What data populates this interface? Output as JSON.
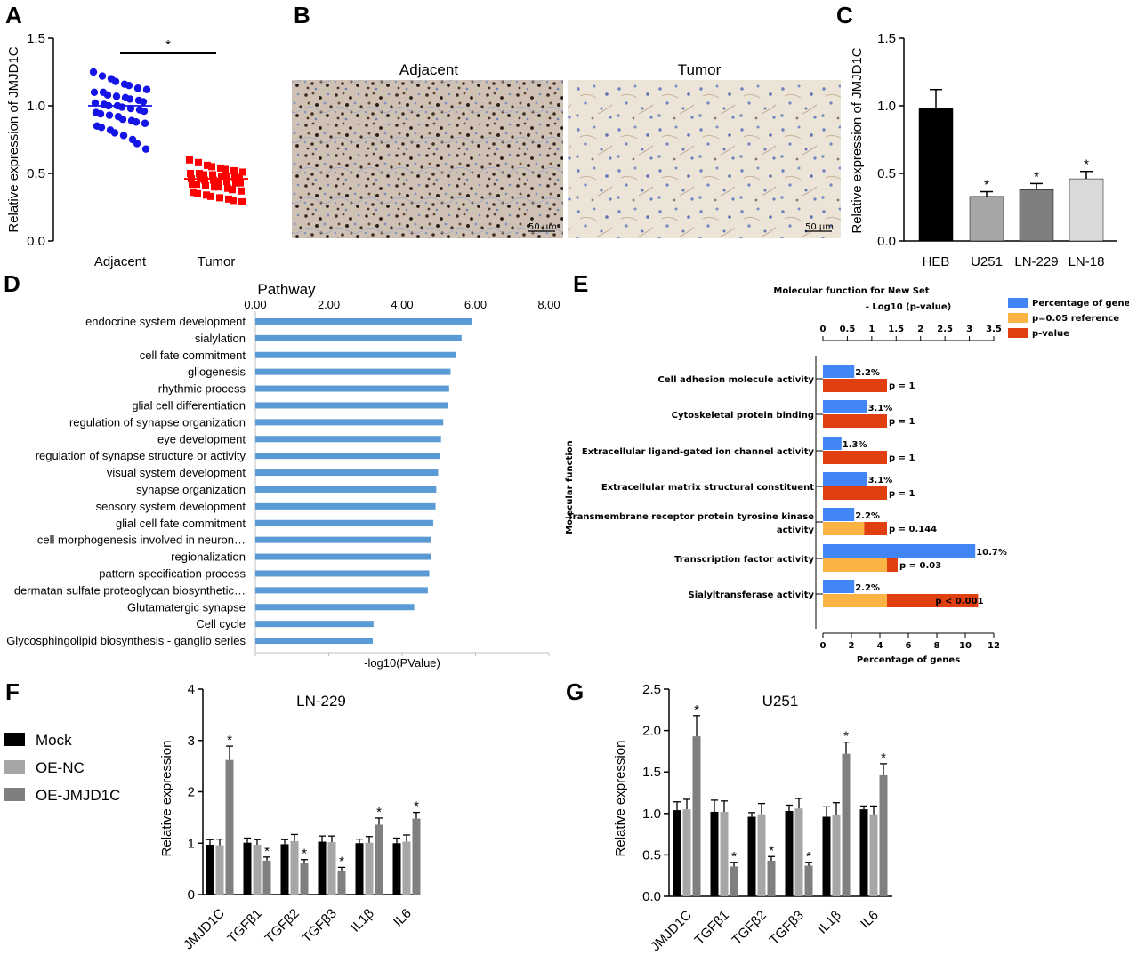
{
  "chart_data": [
    {
      "panel": "A",
      "type": "scatter",
      "ylabel": "Relative expression of JMJD1C",
      "ylim": [
        0,
        1.5
      ],
      "yticks": [
        "0.0",
        "0.5",
        "1.0",
        "1.5"
      ],
      "categories": [
        "Adjacent",
        "Tumor"
      ],
      "significance": "*",
      "series": [
        {
          "values": [
            1.25,
            1.22,
            1.2,
            1.18,
            1.16,
            1.15,
            1.13,
            1.12,
            1.1,
            1.1,
            1.08,
            1.07,
            1.06,
            1.05,
            1.04,
            1.03,
            1.02,
            1.01,
            1.0,
            1.0,
            0.99,
            0.98,
            0.97,
            0.96,
            0.95,
            0.94,
            0.93,
            0.92,
            0.9,
            0.89,
            0.88,
            0.87,
            0.85,
            0.84,
            0.82,
            0.8,
            0.78,
            0.75,
            0.72,
            0.68
          ],
          "mean": 1.0,
          "color": "#1414e6"
        },
        {
          "values": [
            0.6,
            0.58,
            0.56,
            0.55,
            0.54,
            0.53,
            0.52,
            0.51,
            0.5,
            0.5,
            0.49,
            0.49,
            0.48,
            0.48,
            0.47,
            0.47,
            0.46,
            0.46,
            0.45,
            0.45,
            0.44,
            0.44,
            0.43,
            0.43,
            0.42,
            0.42,
            0.41,
            0.4,
            0.4,
            0.39,
            0.38,
            0.37,
            0.36,
            0.35,
            0.34,
            0.33,
            0.32,
            0.31,
            0.3,
            0.29
          ],
          "mean": 0.46,
          "color": "#ff0000"
        }
      ]
    },
    {
      "panel": "C",
      "type": "bar",
      "ylabel": "Relative expression of JMJD1C",
      "ylim": [
        0,
        1.5
      ],
      "yticks": [
        "0.0",
        "0.5",
        "1.0",
        "1.5"
      ],
      "categories": [
        "HEB",
        "U251",
        "LN-229",
        "LN-18"
      ],
      "values": [
        0.98,
        0.33,
        0.38,
        0.46
      ],
      "errors": [
        0.14,
        0.035,
        0.045,
        0.055
      ],
      "colors": [
        "#000000",
        "#a6a6a6",
        "#7f7f7f",
        "#d9d9d9"
      ],
      "significance": [
        "",
        "*",
        "*",
        "*"
      ]
    },
    {
      "panel": "D",
      "type": "bar",
      "title": "Pathway",
      "xlabel": "-log10(PValue)",
      "xlim": [
        0,
        8
      ],
      "xticks": [
        "0.00",
        "2.00",
        "4.00",
        "6.00",
        "8.00"
      ],
      "color": "#5b9bd5",
      "categories": [
        "endocrine system development",
        "sialylation",
        "cell fate commitment",
        "gliogenesis",
        "rhythmic process",
        "glial cell differentiation",
        "regulation of synapse organization",
        "eye development",
        "regulation of synapse structure or activity",
        "visual system development",
        "synapse organization",
        "sensory system development",
        "glial cell fate commitment",
        "cell morphogenesis involved in neuron…",
        "regionalization",
        "pattern specification process",
        "dermatan sulfate proteoglycan biosynthetic…",
        "Glutamatergic synapse",
        "Cell cycle",
        "Glycosphingolipid biosynthesis - ganglio series"
      ],
      "values": [
        5.9,
        5.62,
        5.46,
        5.32,
        5.28,
        5.26,
        5.12,
        5.06,
        5.03,
        4.98,
        4.93,
        4.91,
        4.85,
        4.79,
        4.79,
        4.74,
        4.7,
        4.33,
        3.22,
        3.2
      ]
    },
    {
      "panel": "E",
      "type": "bar",
      "title": "Molecular function for New Set",
      "top_axis_label": "- Log10 (p-value)",
      "top_xlim": [
        0,
        3.5
      ],
      "top_xticks": [
        "0",
        "0.5",
        "1",
        "1.5",
        "2",
        "2.5",
        "3",
        "3.5"
      ],
      "xlabel": "Percentage of genes",
      "xlim": [
        0,
        12
      ],
      "xticks": [
        "0",
        "2",
        "4",
        "6",
        "8",
        "10",
        "12"
      ],
      "ylabel": "Molecular function",
      "legend": [
        "Percentage of gene",
        "p=0.05 reference",
        "p-value"
      ],
      "colors": {
        "percentage": "#4285f4",
        "reference": "#fbb346",
        "pvalue": "#e0400f"
      },
      "legend_placement": "top-right",
      "categories": [
        "Cell adhesion molecule activity",
        "Cytoskeletal protein binding",
        "Extracellular ligand-gated ion channel activity",
        "Extracellular matrix structural constituent",
        "Transmembrane receptor protein tyrosine kinase activity",
        "Transcription factor activity",
        "Sialyltransferase activity"
      ],
      "percentage": [
        2.2,
        3.1,
        1.3,
        3.1,
        2.2,
        10.7,
        2.2
      ],
      "percentage_labels": [
        "2.2%",
        "3.1%",
        "1.3%",
        "3.1%",
        "2.2%",
        "10.7%",
        "2.2%"
      ],
      "reference_pct": [
        0,
        0,
        0,
        0,
        2.9,
        4.5,
        4.5
      ],
      "pvalue_pct": [
        4.5,
        4.5,
        4.5,
        4.5,
        4.5,
        5.25,
        10.9
      ],
      "pvalue_labels": [
        "p = 1",
        "p = 1",
        "p = 1",
        "p = 1",
        "p = 0.144",
        "p = 0.03",
        "p < 0.001"
      ]
    },
    {
      "panel": "F",
      "type": "bar",
      "title": "LN-229",
      "ylabel": "Relative expression",
      "ylim": [
        0,
        4
      ],
      "yticks": [
        "0",
        "1",
        "2",
        "3",
        "4"
      ],
      "categories": [
        "JMJD1C",
        "TGFβ1",
        "TGFβ2",
        "TGFβ3",
        "IL1β",
        "IL6"
      ],
      "series": [
        {
          "name": "Mock",
          "values": [
            0.97,
            1.01,
            0.98,
            1.03,
            1.0,
            1.0
          ],
          "errors": [
            0.1,
            0.09,
            0.09,
            0.11,
            0.08,
            0.1
          ]
        },
        {
          "name": "OE-NC",
          "values": [
            0.96,
            0.97,
            1.04,
            1.02,
            1.01,
            1.03
          ],
          "errors": [
            0.12,
            0.1,
            0.13,
            0.12,
            0.12,
            0.13
          ]
        },
        {
          "name": "OE-JMJD1C",
          "values": [
            2.62,
            0.66,
            0.61,
            0.47,
            1.36,
            1.48
          ],
          "errors": [
            0.27,
            0.07,
            0.07,
            0.06,
            0.13,
            0.12
          ]
        }
      ],
      "significance": [
        "*",
        "*",
        "*",
        "*",
        "*",
        "*"
      ],
      "colors": [
        "#000000",
        "#a6a6a6",
        "#7f7f7f"
      ]
    },
    {
      "panel": "G",
      "type": "bar",
      "title": "U251",
      "ylabel": "Relative expression",
      "ylim": [
        0,
        2.5
      ],
      "yticks": [
        "0.0",
        "0.5",
        "1.0",
        "1.5",
        "2.0",
        "2.5"
      ],
      "categories": [
        "JMJD1C",
        "TGFβ1",
        "TGFβ2",
        "TGFβ3",
        "IL1β",
        "IL6"
      ],
      "series": [
        {
          "name": "Mock",
          "values": [
            1.04,
            1.02,
            0.96,
            1.03,
            0.96,
            1.05
          ],
          "errors": [
            0.1,
            0.14,
            0.05,
            0.07,
            0.12,
            0.04
          ]
        },
        {
          "name": "OE-NC",
          "values": [
            1.05,
            1.02,
            0.99,
            1.06,
            0.98,
            0.99
          ],
          "errors": [
            0.12,
            0.13,
            0.13,
            0.12,
            0.15,
            0.1
          ]
        },
        {
          "name": "OE-JMJD1C",
          "values": [
            1.93,
            0.36,
            0.43,
            0.37,
            1.72,
            1.46
          ],
          "errors": [
            0.25,
            0.05,
            0.05,
            0.04,
            0.14,
            0.14
          ]
        }
      ],
      "significance": [
        "*",
        "*",
        "*",
        "*",
        "*",
        "*"
      ],
      "colors": [
        "#000000",
        "#a6a6a6",
        "#7f7f7f"
      ]
    }
  ],
  "panel_labels": [
    "A",
    "B",
    "C",
    "D",
    "E",
    "F",
    "G"
  ],
  "panel_b": {
    "left_title": "Adjacent",
    "right_title": "Tumor",
    "scale_left": "50 μm",
    "scale_right": "50 μm"
  },
  "legend_fg": [
    "Mock",
    "OE-NC",
    "OE-JMJD1C"
  ]
}
